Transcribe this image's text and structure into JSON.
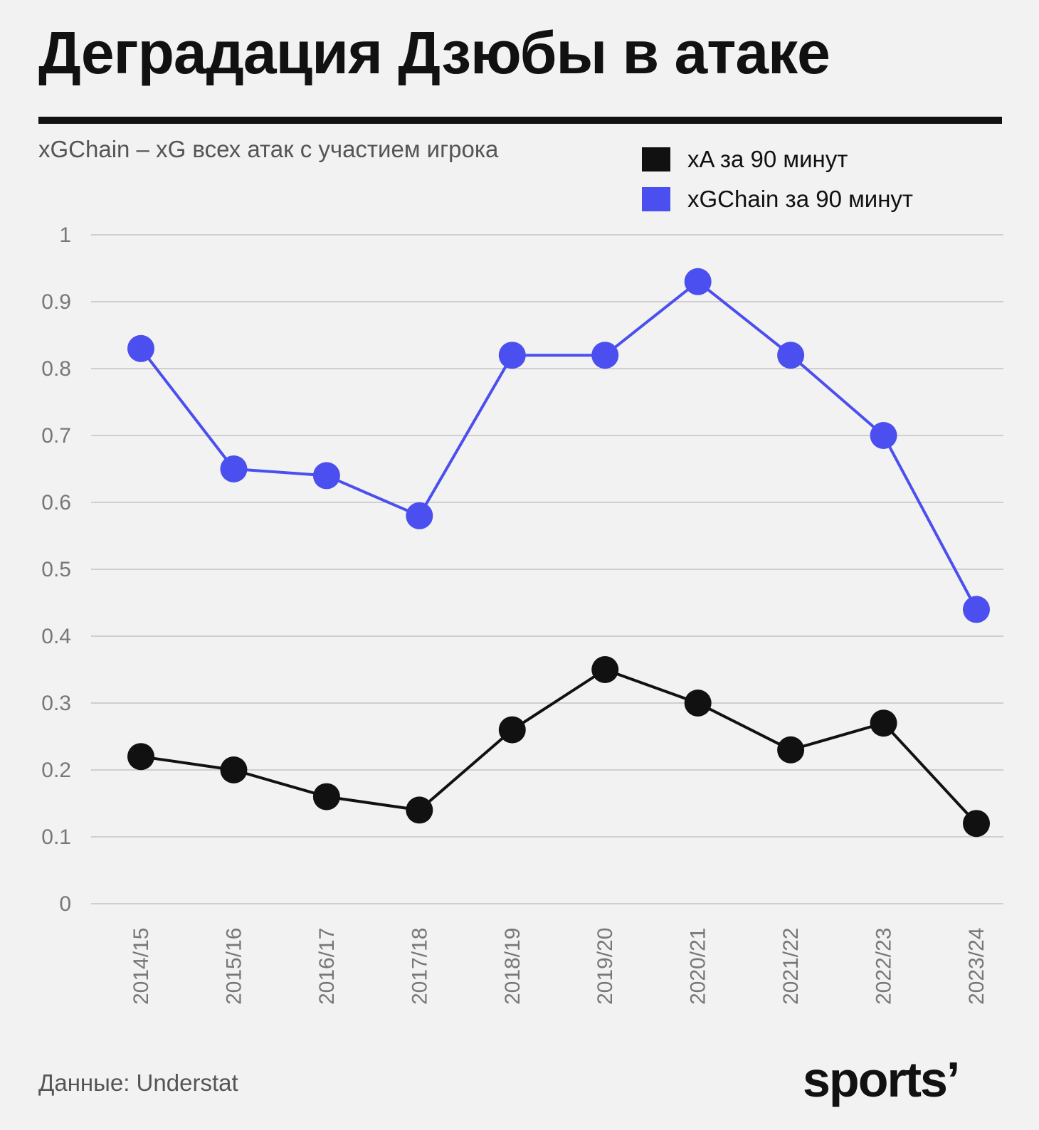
{
  "header": {
    "title": "Деградация Дзюбы в атаке",
    "subtitle": "xGChain – xG всех атак с участием игрока"
  },
  "footer": {
    "source": "Данные: Understat",
    "logo_text": "sports’"
  },
  "colors": {
    "xa": "#111111",
    "xgchain": "#4b4ff0",
    "grid": "#cfcfcf",
    "background": "#f2f2f2"
  },
  "chart_data": {
    "type": "line",
    "title": "Деградация Дзюбы в атаке",
    "subtitle": "xGChain – xG всех атак с участием игрока",
    "categories": [
      "2014/15",
      "2015/16",
      "2016/17",
      "2017/18",
      "2018/19",
      "2019/20",
      "2020/21",
      "2021/22",
      "2022/23",
      "2023/24"
    ],
    "series": [
      {
        "name": "xA за 90 минут",
        "color": "#111111",
        "values": [
          0.22,
          0.2,
          0.16,
          0.14,
          0.26,
          0.35,
          0.3,
          0.23,
          0.27,
          0.12
        ]
      },
      {
        "name": "xGChain за 90 минут",
        "color": "#4b4ff0",
        "values": [
          0.83,
          0.65,
          0.64,
          0.58,
          0.82,
          0.82,
          0.93,
          0.82,
          0.7,
          0.44
        ]
      }
    ],
    "yticks": [
      "0",
      "0.1",
      "0.2",
      "0.3",
      "0.4",
      "0.5",
      "0.6",
      "0.7",
      "0.8",
      "0.9",
      "1"
    ],
    "ylim": [
      0,
      1
    ],
    "grid": true,
    "legend_position": "top-right",
    "xlabel": "",
    "ylabel": ""
  }
}
